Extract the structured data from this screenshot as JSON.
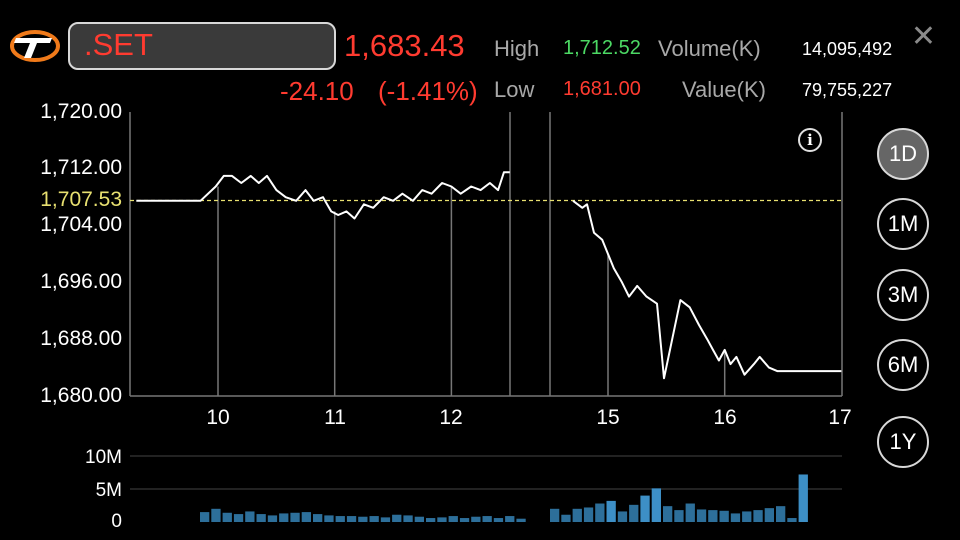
{
  "header": {
    "logo": "settrade-logo",
    "symbol": ".SET",
    "last_price": "1,683.43",
    "change": "-24.10",
    "change_pct": "(-1.41%)",
    "high_label": "High",
    "high_value": "1,712.52",
    "low_label": "Low",
    "low_value": "1,681.00",
    "volume_label": "Volume(K)",
    "volume_value": "14,095,492",
    "value_label": "Value(K)",
    "value_value": "79,755,227",
    "close_icon": "close-icon"
  },
  "colors": {
    "down": "#ff3b30",
    "up": "#4cd964",
    "prev_close_line": "#e8e070",
    "price_line": "#ffffff",
    "volume_bar": "#2d6f9a",
    "volume_bar_bright": "#3d8fc6",
    "grid": "#777777"
  },
  "chart": {
    "prev_close_label": "1,707.53",
    "info_icon": "info-icon"
  },
  "periods": [
    {
      "label": "1D",
      "active": true
    },
    {
      "label": "1M",
      "active": false
    },
    {
      "label": "3M",
      "active": false
    },
    {
      "label": "6M",
      "active": false
    },
    {
      "label": "1Y",
      "active": false
    }
  ],
  "chart_data": {
    "type": "line",
    "title": "",
    "y_ticks": [
      "1,720.00",
      "1,712.00",
      "1,704.00",
      "1,696.00",
      "1,688.00",
      "1,680.00"
    ],
    "ylim": [
      1680,
      1720
    ],
    "x_ticks": [
      "10",
      "11",
      "12",
      "15",
      "16",
      "17"
    ],
    "reference_line": {
      "label": "1,707.53",
      "value": 1707.53
    },
    "session1": {
      "x": [
        9.3,
        9.7,
        9.85,
        9.98,
        10.05,
        10.12,
        10.2,
        10.28,
        10.35,
        10.42,
        10.5,
        10.58,
        10.67,
        10.75,
        10.82,
        10.9,
        10.97,
        11.03,
        11.1,
        11.17,
        11.25,
        11.33,
        11.42,
        11.5,
        11.58,
        11.67,
        11.75,
        11.83,
        11.92,
        12.0,
        12.08,
        12.17,
        12.25,
        12.33,
        12.4,
        12.45,
        12.5
      ],
      "y": [
        1707.5,
        1707.5,
        1707.5,
        1709.5,
        1711.0,
        1711.0,
        1710.0,
        1711.0,
        1710.0,
        1711.0,
        1709.0,
        1708.0,
        1707.5,
        1709.0,
        1707.5,
        1708.0,
        1706.0,
        1705.5,
        1706.0,
        1705.0,
        1707.0,
        1706.5,
        1708.0,
        1707.5,
        1708.5,
        1707.5,
        1709.0,
        1708.5,
        1710.0,
        1709.5,
        1708.5,
        1709.5,
        1709.0,
        1710.0,
        1709.0,
        1711.5,
        1711.5
      ]
    },
    "session2": {
      "x": [
        14.7,
        14.78,
        14.82,
        14.88,
        14.95,
        15.0,
        15.05,
        15.12,
        15.18,
        15.25,
        15.33,
        15.42,
        15.48,
        15.55,
        15.62,
        15.7,
        15.78,
        15.85,
        15.9,
        15.95,
        16.0,
        16.05,
        16.1,
        16.17,
        16.25,
        16.3,
        16.38,
        16.45,
        16.5,
        16.58,
        16.65,
        16.75,
        16.85,
        16.95,
        17.0
      ],
      "y": [
        1707.5,
        1706.5,
        1707.0,
        1703.0,
        1702.0,
        1700.0,
        1698.0,
        1696.0,
        1694.0,
        1695.5,
        1694.0,
        1693.0,
        1682.5,
        1688.0,
        1693.5,
        1692.5,
        1690.0,
        1688.0,
        1686.5,
        1685.0,
        1686.5,
        1684.5,
        1685.5,
        1683.0,
        1684.5,
        1685.5,
        1684.0,
        1683.5,
        1683.5,
        1683.5,
        1683.5,
        1683.5,
        1683.5,
        1683.5,
        1683.5
      ]
    },
    "volume": {
      "ylabels": [
        "10M",
        "5M",
        "0"
      ],
      "ylim": [
        0,
        10
      ],
      "unit": "M",
      "session1": [
        1.5,
        2.0,
        1.4,
        1.2,
        1.6,
        1.2,
        1.0,
        1.3,
        1.4,
        1.5,
        1.2,
        1.0,
        0.9,
        0.9,
        0.8,
        0.9,
        0.7,
        1.1,
        1.0,
        0.8,
        0.6,
        0.7,
        0.9,
        0.6,
        0.8,
        0.9,
        0.6,
        0.9,
        0.5
      ],
      "session2": [
        2.0,
        1.1,
        2.0,
        2.2,
        2.8,
        3.2,
        1.6,
        2.6,
        4.0,
        5.1,
        2.4,
        1.8,
        2.8,
        1.9,
        1.8,
        1.7,
        1.3,
        1.6,
        1.8,
        2.1,
        2.4,
        0.6,
        7.2
      ]
    }
  }
}
